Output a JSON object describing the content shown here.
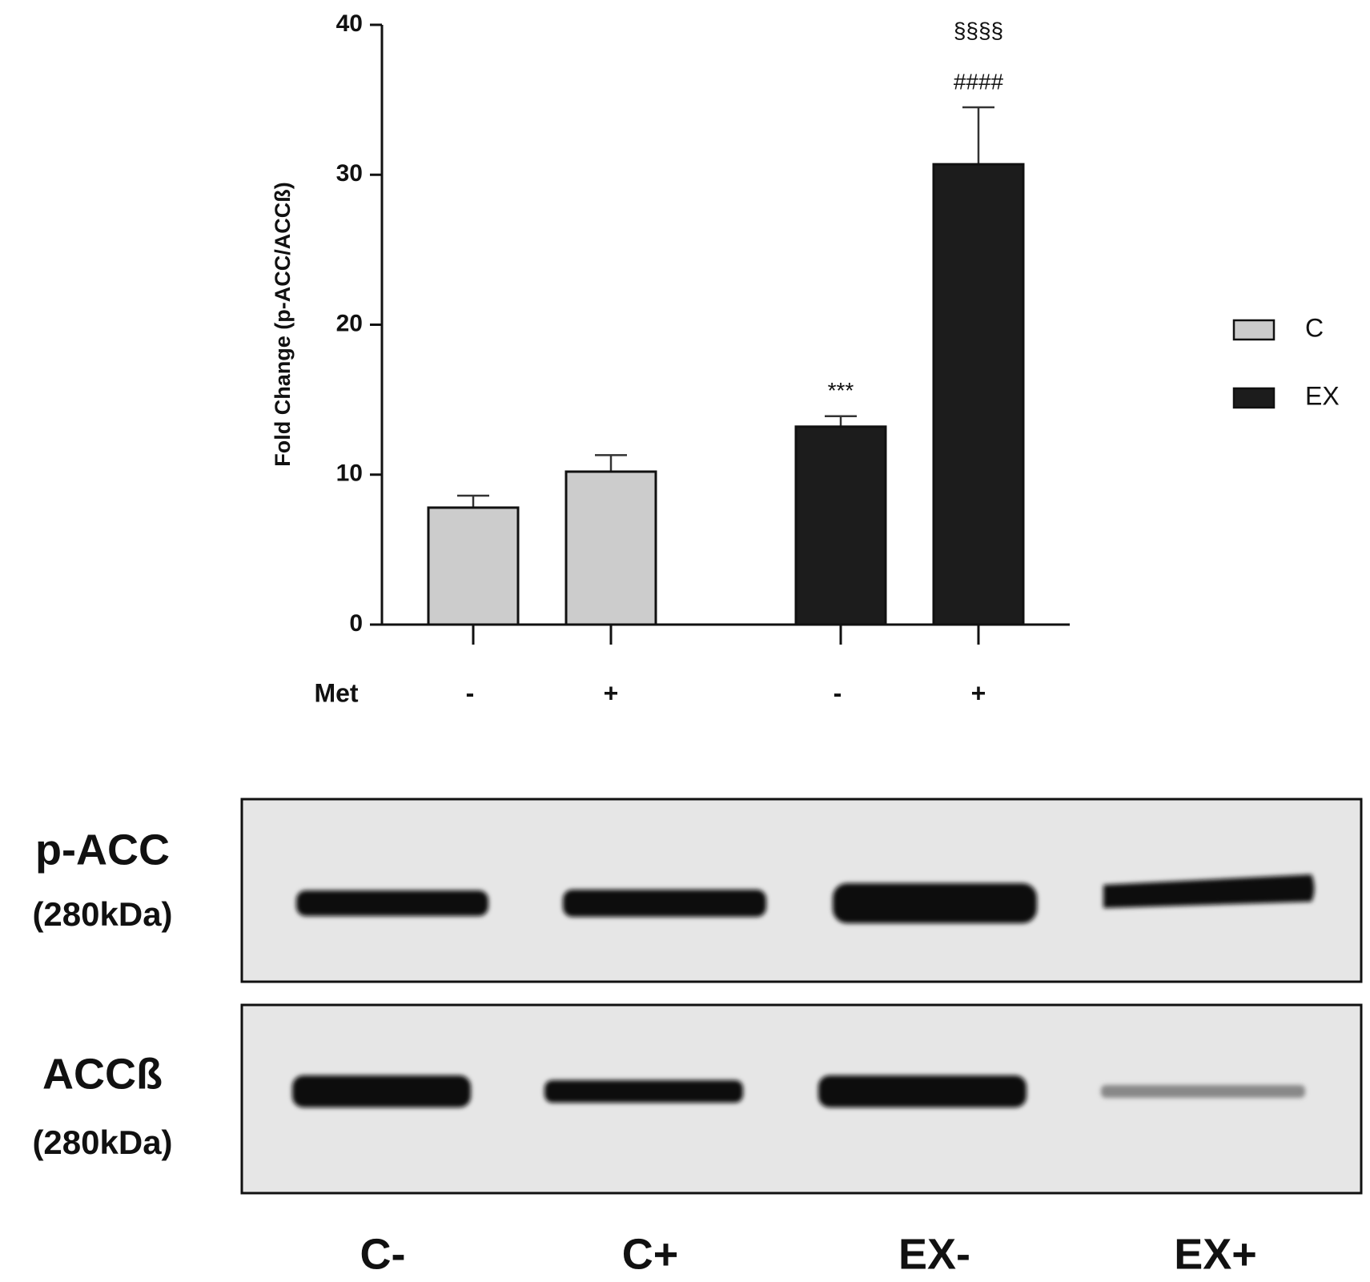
{
  "chart_data": {
    "type": "bar",
    "y_label": "Fold Change (p-ACC/ACCß)",
    "x_label": "Met",
    "categories": [
      "-",
      "+",
      "-",
      "+"
    ],
    "series": [
      {
        "name": "C",
        "color": "#cccccc",
        "values": [
          7.8,
          10.2,
          null,
          null
        ],
        "errors": [
          0.8,
          1.1,
          null,
          null
        ]
      },
      {
        "name": "EX",
        "color": "#1c1c1c",
        "values": [
          null,
          null,
          13.2,
          30.7
        ],
        "errors": [
          null,
          null,
          0.7,
          3.8
        ]
      }
    ],
    "annotations": [
      {
        "text": "***",
        "category": 2
      },
      {
        "text": "####",
        "category": 3
      },
      {
        "text": "§§§§",
        "category": 3
      }
    ],
    "ylim": [
      0,
      40
    ],
    "yticks": [
      0,
      10,
      20,
      30,
      40
    ],
    "legend": "right"
  },
  "blot": {
    "rows": [
      {
        "label": "p-ACC",
        "size": "(280kDa)"
      },
      {
        "label": "ACCß",
        "size": "(280kDa)"
      }
    ],
    "lanes": [
      "C-",
      "C+",
      "EX-",
      "EX+"
    ]
  }
}
